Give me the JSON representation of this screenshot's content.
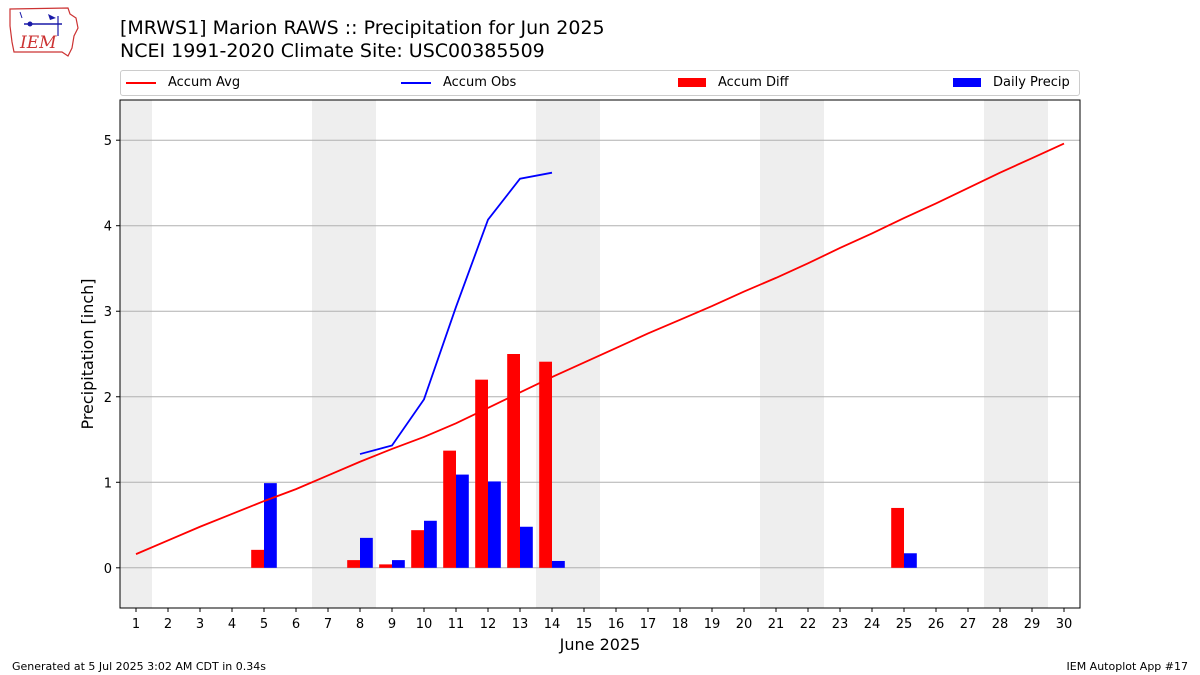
{
  "header": {
    "title": "[MRWS1] Marion RAWS :: Precipitation for Jun 2025",
    "subtitle": "NCEI 1991-2020 Climate Site: USC00385509"
  },
  "logo": {
    "text": "IEM"
  },
  "footer": {
    "left": "Generated at 5 Jul 2025 3:02 AM CDT in 0.34s",
    "right": "IEM Autoplot App #17"
  },
  "legend": {
    "items": [
      {
        "label": "Accum Avg",
        "kind": "line",
        "color": "#ff0000"
      },
      {
        "label": "Accum Obs",
        "kind": "line",
        "color": "#0000ff"
      },
      {
        "label": "Accum Diff",
        "kind": "bar",
        "color": "#ff0000"
      },
      {
        "label": "Daily Precip",
        "kind": "bar",
        "color": "#0000ff"
      }
    ],
    "placement": "top"
  },
  "chart_data": {
    "type": "bar",
    "xlabel": "June 2025",
    "ylabel": "Precipitation [inch]",
    "xlim": [
      0.5,
      30.5
    ],
    "ylim": [
      -0.47,
      5.47
    ],
    "y_ticks": [
      0,
      1,
      2,
      3,
      4,
      5
    ],
    "x_ticks": [
      1,
      2,
      3,
      4,
      5,
      6,
      7,
      8,
      9,
      10,
      11,
      12,
      13,
      14,
      15,
      16,
      17,
      18,
      19,
      20,
      21,
      22,
      23,
      24,
      25,
      26,
      27,
      28,
      29,
      30
    ],
    "grid": "horizontal",
    "weekend_shading": [
      [
        0.5,
        1.5
      ],
      [
        6.5,
        8.5
      ],
      [
        13.5,
        15.5
      ],
      [
        20.5,
        22.5
      ],
      [
        27.5,
        29.5
      ]
    ],
    "colors": {
      "avg": "#ff0000",
      "obs": "#0000ff",
      "diff": "#ff0000",
      "daily": "#0000ff",
      "shade": "#eeeeee",
      "grid": "#b0b0b0"
    },
    "accum_avg": {
      "x": [
        1,
        2,
        3,
        4,
        5,
        6,
        7,
        8,
        9,
        10,
        11,
        12,
        13,
        14,
        15,
        16,
        17,
        18,
        19,
        20,
        21,
        22,
        23,
        24,
        25,
        26,
        27,
        28,
        29,
        30
      ],
      "y": [
        0.16,
        0.32,
        0.48,
        0.63,
        0.78,
        0.92,
        1.08,
        1.24,
        1.39,
        1.53,
        1.69,
        1.87,
        2.05,
        2.23,
        2.4,
        2.57,
        2.74,
        2.9,
        3.06,
        3.23,
        3.39,
        3.56,
        3.74,
        3.91,
        4.09,
        4.26,
        4.44,
        4.62,
        4.79,
        4.96
      ]
    },
    "accum_obs": {
      "x": [
        8,
        9,
        10,
        11,
        12,
        13,
        14
      ],
      "y": [
        1.33,
        1.43,
        1.97,
        3.05,
        4.07,
        4.55,
        4.62
      ]
    },
    "accum_diff": {
      "x": [
        5,
        8,
        9,
        10,
        11,
        12,
        13,
        14,
        25
      ],
      "y": [
        0.21,
        0.09,
        0.04,
        0.44,
        1.37,
        2.2,
        2.5,
        2.41,
        0.7
      ]
    },
    "daily_precip": {
      "x": [
        5,
        8,
        9,
        10,
        11,
        12,
        13,
        14,
        25
      ],
      "y": [
        0.99,
        0.35,
        0.09,
        0.55,
        1.09,
        1.01,
        0.48,
        0.08,
        0.17
      ]
    }
  }
}
